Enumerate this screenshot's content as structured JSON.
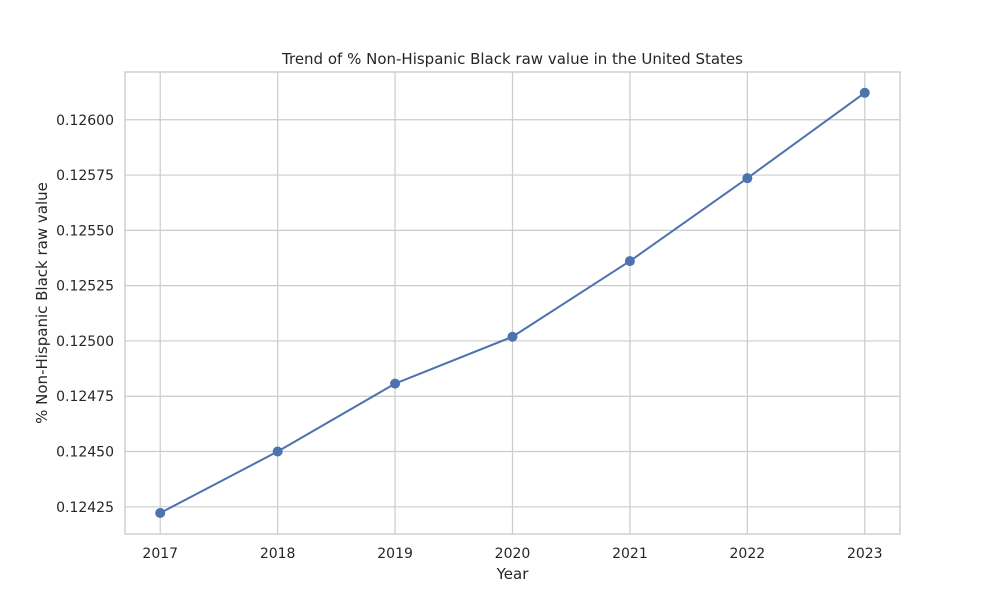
{
  "chart_data": {
    "type": "line",
    "title": "Trend of % Non-Hispanic Black raw value in the United States",
    "xlabel": "Year",
    "ylabel": "% Non-Hispanic Black raw value",
    "x": [
      2017,
      2018,
      2019,
      2020,
      2021,
      2022,
      2023
    ],
    "x_tick_labels": [
      "2017",
      "2018",
      "2019",
      "2020",
      "2021",
      "2022",
      "2023"
    ],
    "y_ticks": [
      0.12425,
      0.1245,
      0.12475,
      0.125,
      0.12525,
      0.1255,
      0.12575,
      0.126
    ],
    "y_tick_labels": [
      "0.12425",
      "0.12450",
      "0.12475",
      "0.12500",
      "0.12525",
      "0.12550",
      "0.12575",
      "0.12600"
    ],
    "xlim": [
      2016.7,
      2023.3
    ],
    "ylim": [
      0.124127,
      0.126216
    ],
    "grid": true,
    "series": [
      {
        "values": [
          0.124222,
          0.1245,
          0.124807,
          0.125019,
          0.125361,
          0.125736,
          0.126122
        ],
        "color": "#4c72b0",
        "marker": "circle"
      }
    ]
  }
}
